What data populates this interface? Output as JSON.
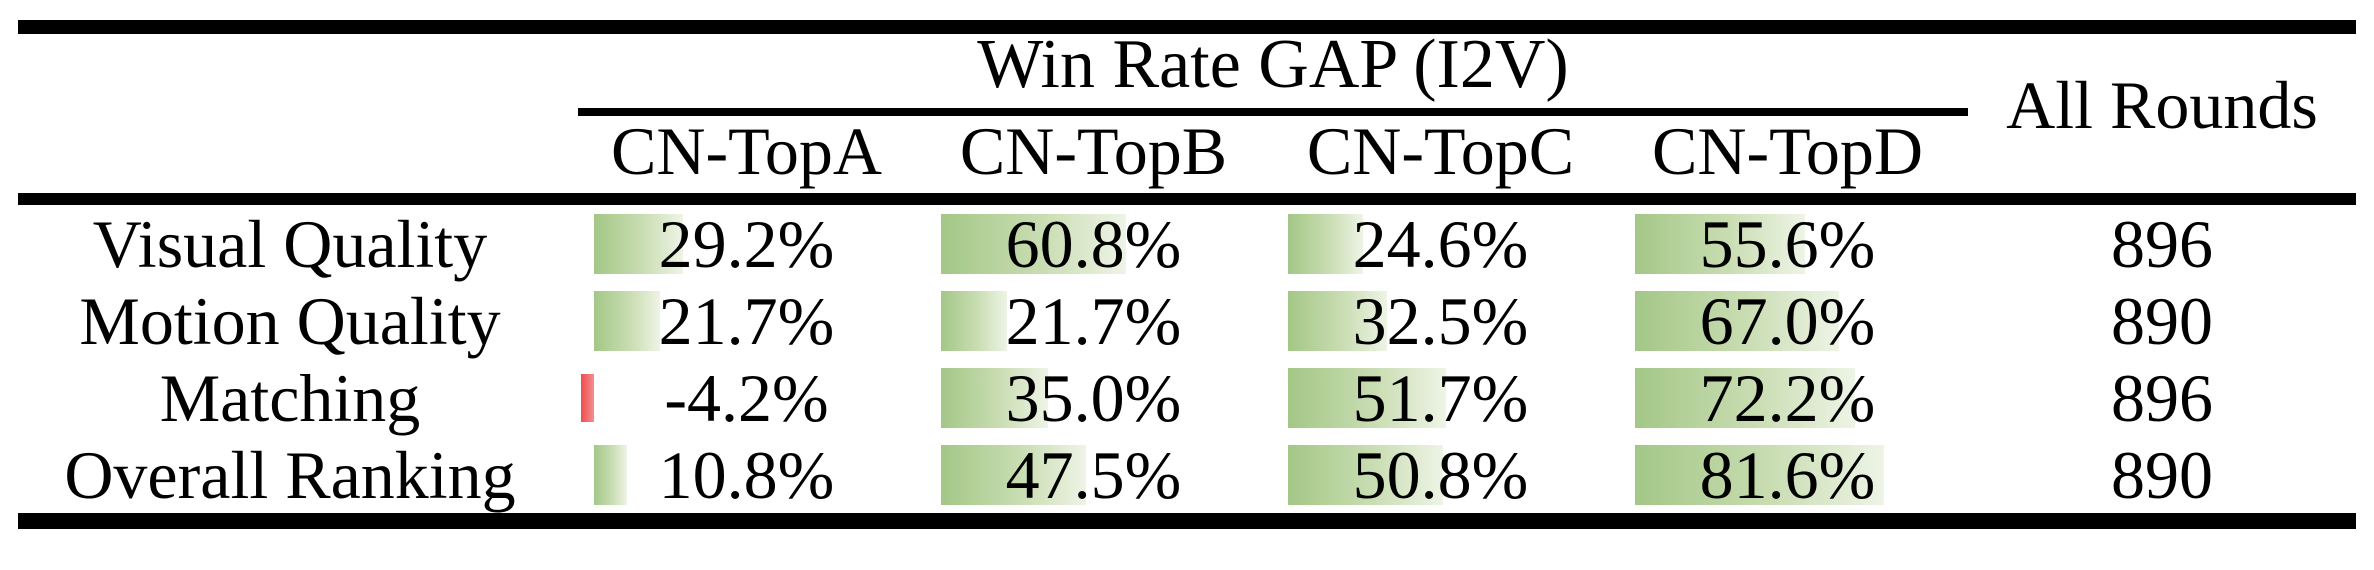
{
  "table": {
    "title": "Win Rate GAP (I2V)",
    "all_rounds_label": "All Rounds",
    "columns": [
      "CN-TopA",
      "CN-TopB",
      "CN-TopC",
      "CN-TopD"
    ],
    "rows": [
      {
        "label": "Visual Quality",
        "values": [
          "29.2%",
          "60.8%",
          "24.6%",
          "55.6%"
        ],
        "all_rounds": "896"
      },
      {
        "label": "Motion Quality",
        "values": [
          "21.7%",
          "21.7%",
          "32.5%",
          "67.0%"
        ],
        "all_rounds": "890"
      },
      {
        "label": "Matching",
        "values": [
          "-4.2%",
          "35.0%",
          "51.7%",
          "72.2%"
        ],
        "all_rounds": "896"
      },
      {
        "label": "Overall Ranking",
        "values": [
          "10.8%",
          "47.5%",
          "50.8%",
          "81.6%"
        ],
        "all_rounds": "890"
      }
    ],
    "colors": {
      "positive_bar_start": "#a3c787",
      "positive_bar_end": "#eef4e6",
      "negative_bar_start": "#ee4d4d",
      "negative_bar_end": "#f58f8f",
      "rule": "#000000"
    }
  },
  "chart_data": {
    "type": "table",
    "title": "Win Rate GAP (I2V)",
    "columns": [
      "CN-TopA",
      "CN-TopB",
      "CN-TopC",
      "CN-TopD",
      "All Rounds"
    ],
    "row_labels": [
      "Visual Quality",
      "Motion Quality",
      "Matching",
      "Overall Ranking"
    ],
    "series": [
      {
        "name": "CN-TopA",
        "values": [
          29.2,
          21.7,
          -4.2,
          10.8
        ]
      },
      {
        "name": "CN-TopB",
        "values": [
          60.8,
          21.7,
          35.0,
          47.5
        ]
      },
      {
        "name": "CN-TopC",
        "values": [
          24.6,
          32.5,
          51.7,
          50.8
        ]
      },
      {
        "name": "CN-TopD",
        "values": [
          55.6,
          67.0,
          72.2,
          81.6
        ]
      }
    ],
    "all_rounds": [
      896,
      890,
      896,
      890
    ],
    "value_unit": "%",
    "bar_scale": "data bars proportional to value, 100% = full track width",
    "negative_bar_color": "red",
    "positive_bar_color": "green gradient"
  }
}
